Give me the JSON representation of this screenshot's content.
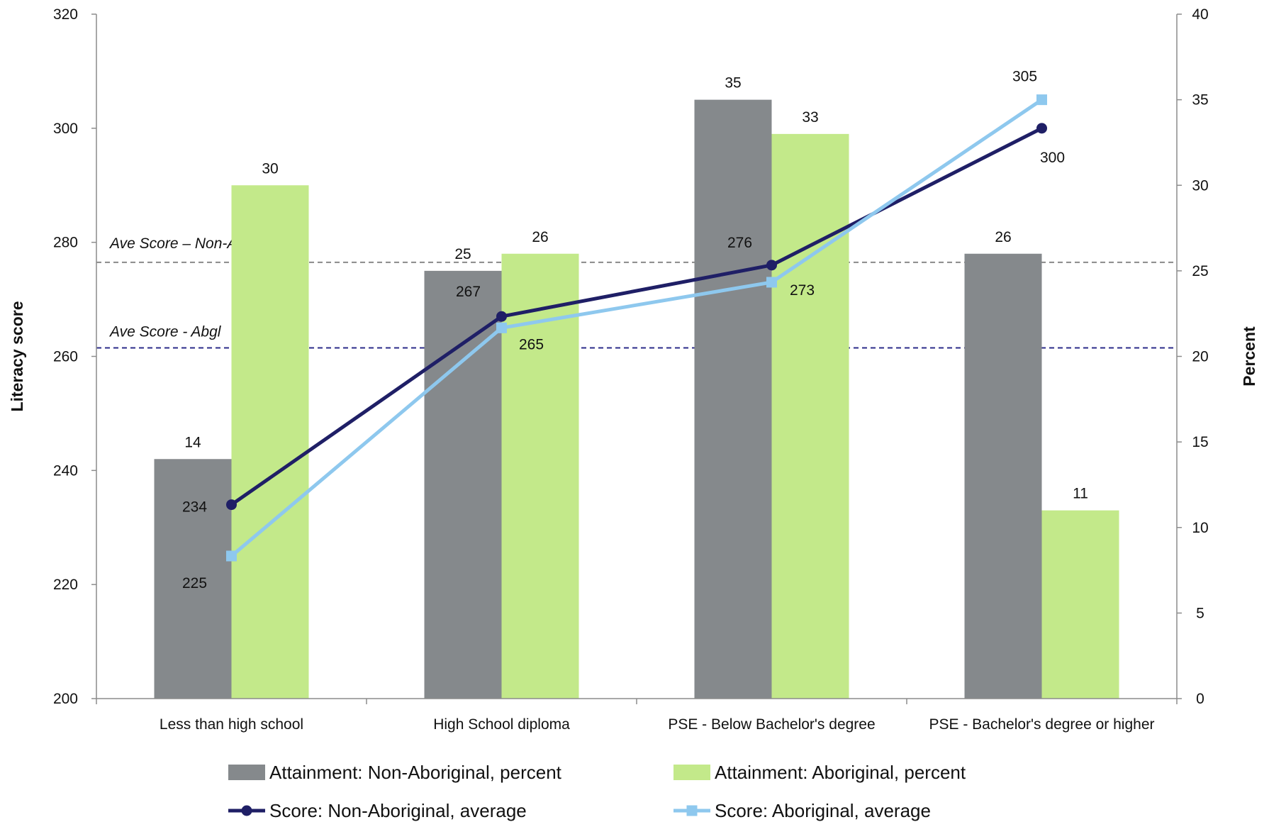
{
  "chart_data": {
    "type": "bar",
    "categories": [
      "Less than high school",
      "High School diploma",
      "PSE - Below Bachelor's degree",
      "PSE - Bachelor's degree or higher"
    ],
    "bar_series": [
      {
        "name": "Attainment: Non-Aboriginal, percent",
        "values": [
          14,
          25,
          35,
          26
        ],
        "labels": [
          "14",
          "25",
          "35",
          "26"
        ],
        "color": "#85898c",
        "axis": "right"
      },
      {
        "name": "Attainment: Aboriginal, percent",
        "values": [
          30,
          26,
          33,
          11
        ],
        "labels": [
          "30",
          "26",
          "33",
          "11"
        ],
        "color": "#c3e98a",
        "axis": "right"
      }
    ],
    "line_series": [
      {
        "name": "Score: Non-Aboriginal, average",
        "values": [
          234,
          267,
          276,
          300
        ],
        "labels": [
          "234",
          "267",
          "276",
          "300"
        ],
        "color": "#1f1f66",
        "marker": "circle",
        "axis": "left"
      },
      {
        "name": "Score: Aboriginal, average",
        "values": [
          225,
          265,
          273,
          305
        ],
        "labels": [
          "225",
          "265",
          "273",
          "305"
        ],
        "color": "#8ec8ee",
        "marker": "square",
        "axis": "left"
      }
    ],
    "reference_lines": [
      {
        "label": "Ave Score – Non-Abgl",
        "value": 276.5,
        "color": "#8a8a8a",
        "style": "dashed"
      },
      {
        "label": "Ave Score - Abgl",
        "value": 261.5,
        "color": "#2b2b8a",
        "style": "dashed"
      }
    ],
    "ylabel_left": "Literacy score",
    "ylabel_right": "Percent",
    "ylim_left": [
      200,
      320
    ],
    "ylim_right": [
      0,
      40
    ],
    "yticks_left": [
      "200",
      "220",
      "240",
      "260",
      "280",
      "300",
      "320"
    ],
    "yticks_right": [
      "0",
      "5",
      "10",
      "15",
      "20",
      "25",
      "30",
      "35",
      "40"
    ],
    "grid": false,
    "legend_position": "bottom"
  }
}
